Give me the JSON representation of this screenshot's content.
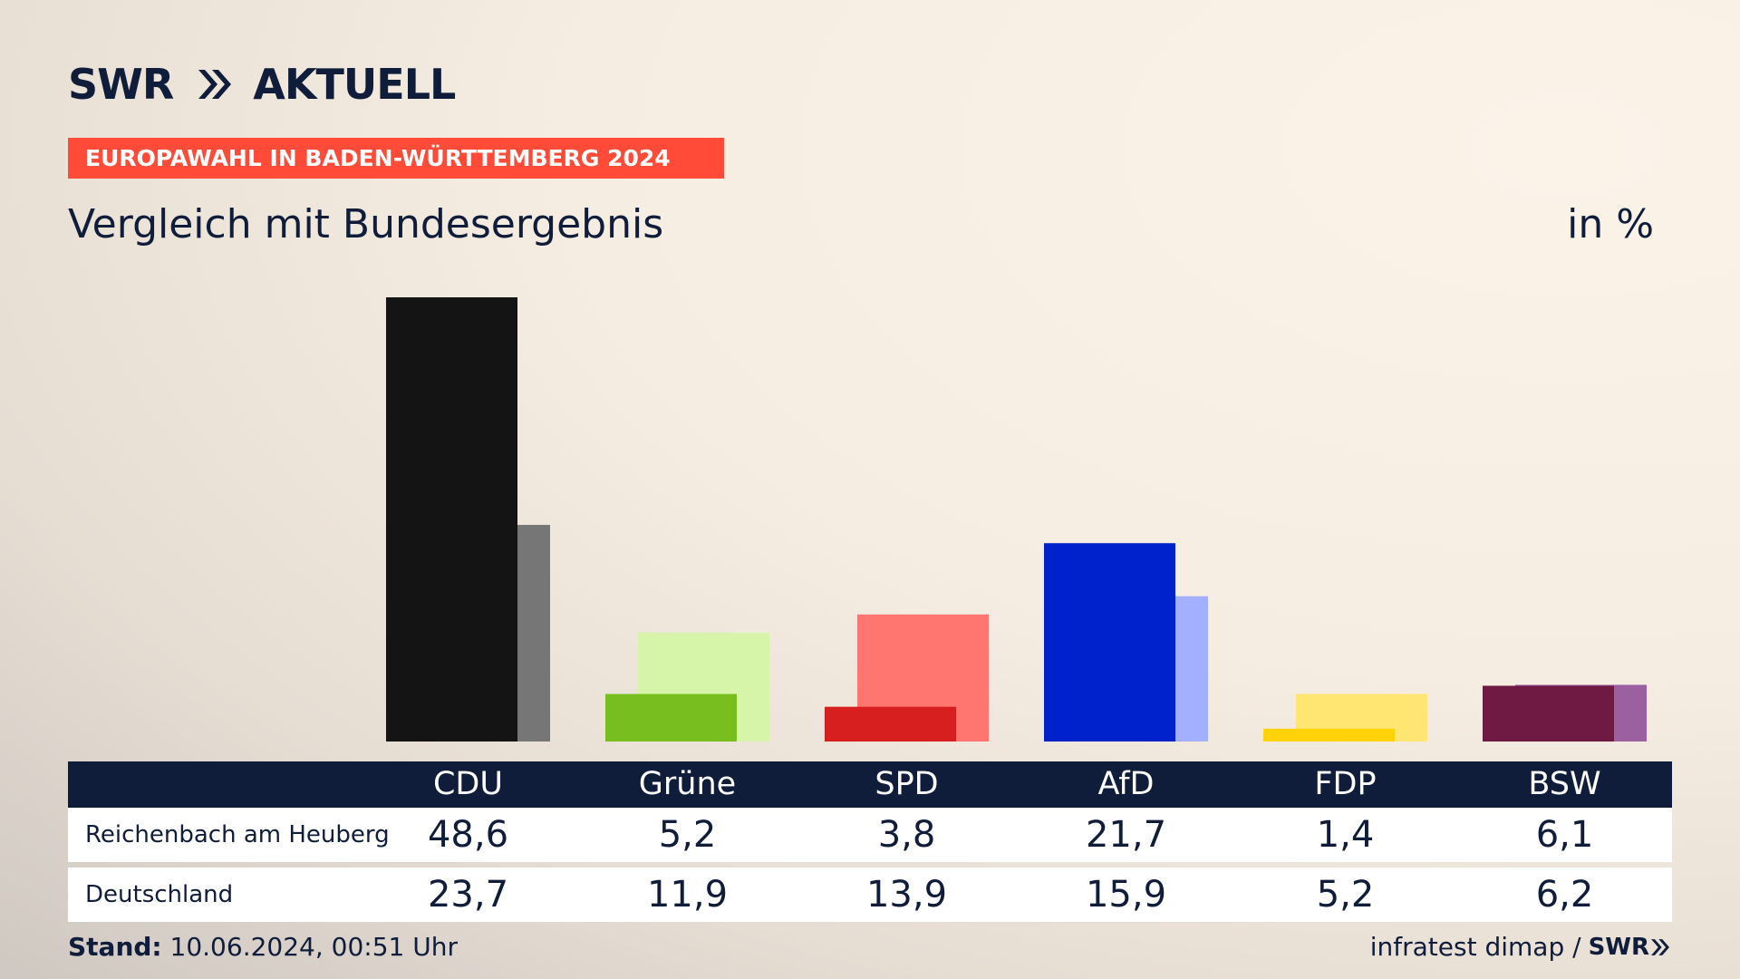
{
  "header": {
    "logo_left": "SWR",
    "logo_right": "AKTUELL",
    "tag": "EUROPAWAHL IN BADEN-WÜRTTEMBERG 2024",
    "subtitle": "Vergleich mit Bundesergebnis",
    "unit": "in %"
  },
  "colors": {
    "navy": "#0f1d3a",
    "tag_red": "#ff4b38"
  },
  "chart_data": {
    "type": "bar",
    "categories": [
      "CDU",
      "Grüne",
      "SPD",
      "AfD",
      "FDP",
      "BSW"
    ],
    "series": [
      {
        "name": "Reichenbach am Heuberg",
        "values": [
          48.6,
          5.2,
          3.8,
          21.7,
          1.4,
          6.1
        ],
        "colors": [
          "#141414",
          "#78be1e",
          "#d71f1f",
          "#0022cc",
          "#ffd20a",
          "#6e1a42"
        ]
      },
      {
        "name": "Deutschland",
        "values": [
          23.7,
          11.9,
          13.9,
          15.9,
          5.2,
          6.2
        ],
        "colors": [
          "#767676",
          "#d6f5a8",
          "#ff7570",
          "#a2b0ff",
          "#ffe572",
          "#9a60a0"
        ]
      }
    ],
    "value_labels": [
      [
        "48,6",
        "5,2",
        "3,8",
        "21,7",
        "1,4",
        "6,1"
      ],
      [
        "23,7",
        "11,9",
        "13,9",
        "15,9",
        "5,2",
        "6,2"
      ]
    ],
    "ylim": [
      0,
      48.6
    ]
  },
  "footer": {
    "stand_label": "Stand:",
    "stand_value": "10.06.2024, 00:51 Uhr",
    "source": "infratest dimap /",
    "source_logo": "SWR"
  }
}
